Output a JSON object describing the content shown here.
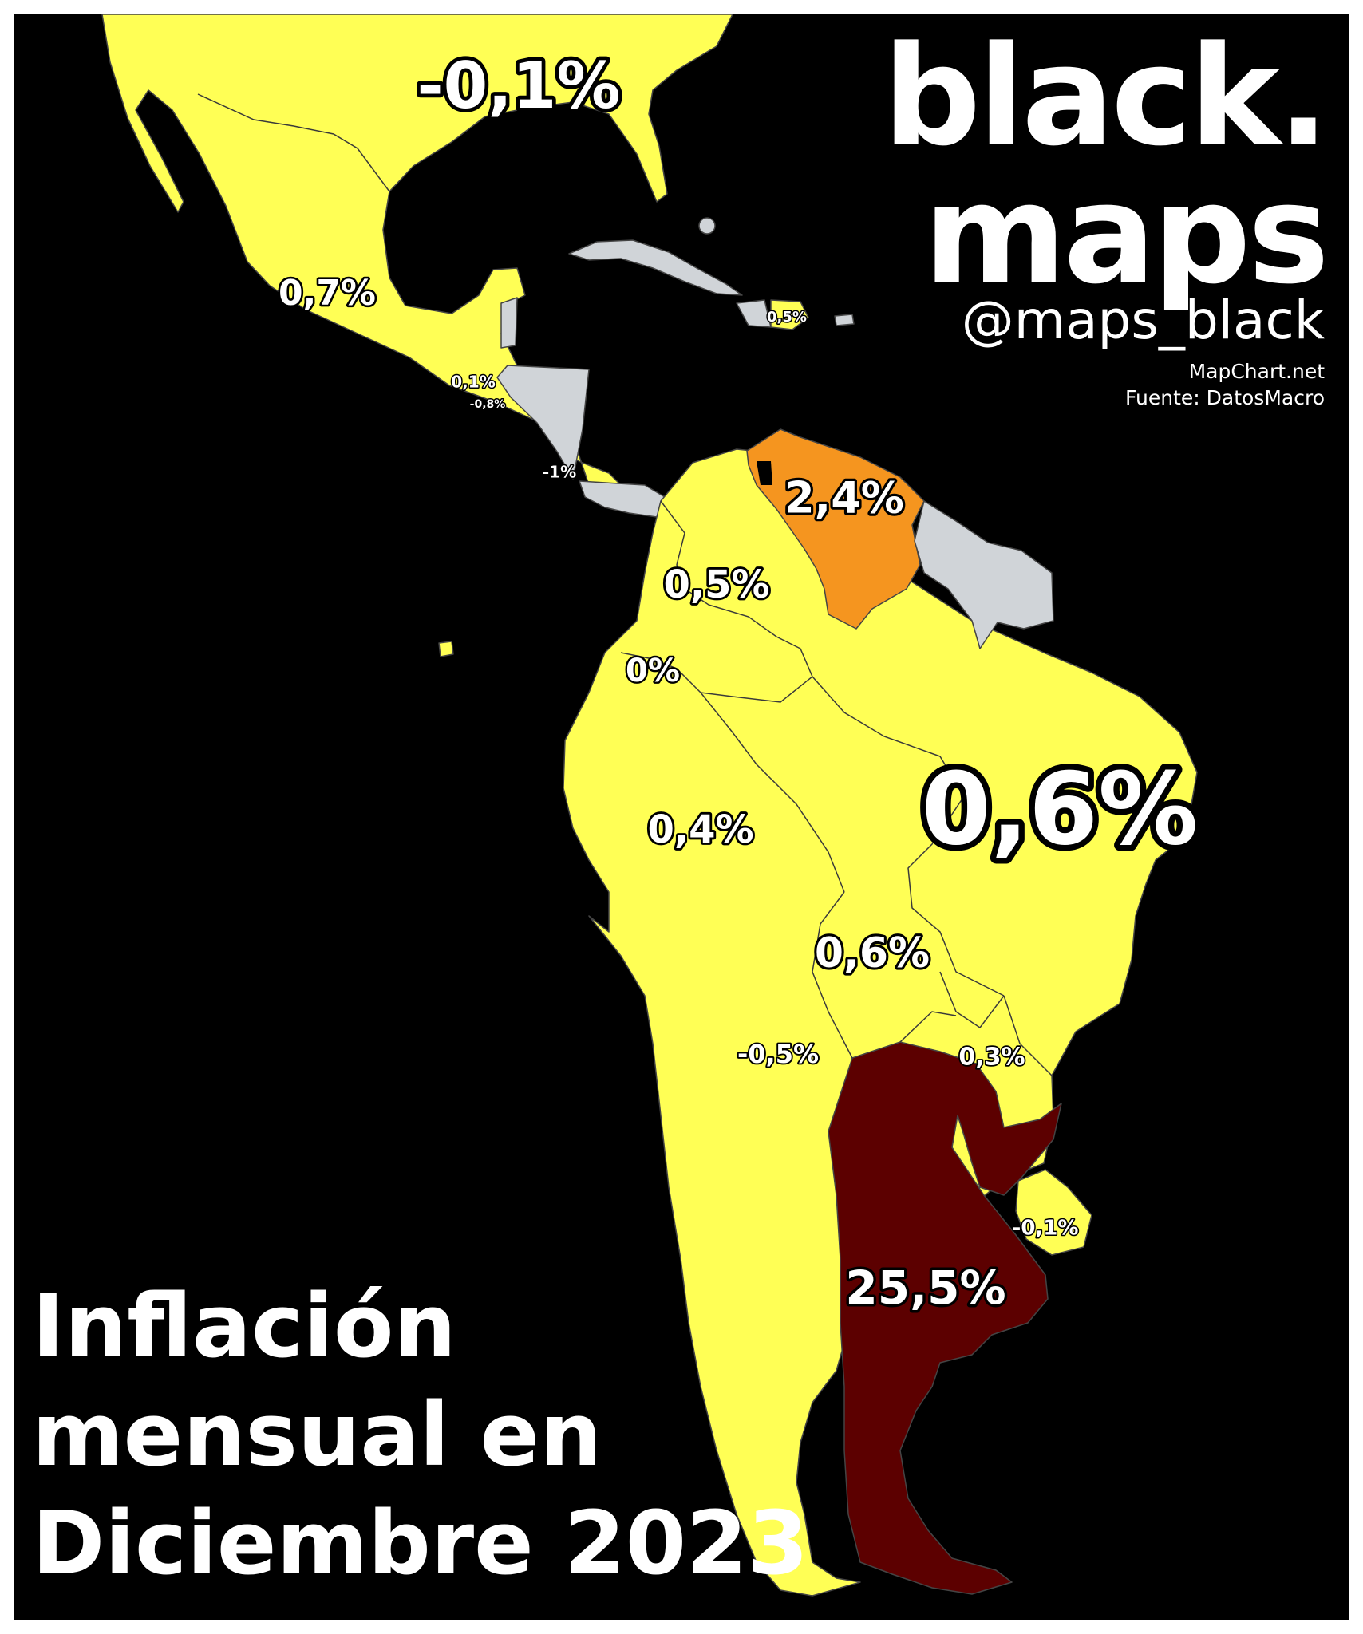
{
  "brand": {
    "line1": "black.",
    "line2": "maps",
    "handle": "@maps_black"
  },
  "credits": {
    "tool": "MapChart.net",
    "source": "Fuente: DatosMacro"
  },
  "title": {
    "line1": "Inflación",
    "line2": "mensual en",
    "line3": "Diciembre 2023"
  },
  "colors": {
    "background": "#000000",
    "low_inflation": "#ffff55",
    "medium_inflation": "#f5951f",
    "high_inflation": "#5c0000",
    "no_data": "#d0d4d8",
    "label_text": "#ffffff",
    "label_outline": "#000000"
  },
  "regions": [
    {
      "country": "Estados Unidos",
      "value": "-0,1%",
      "category": "low"
    },
    {
      "country": "México",
      "value": "0,7%",
      "category": "low"
    },
    {
      "country": "República Dominicana",
      "value": "0,5%",
      "category": "low"
    },
    {
      "country": "Guatemala",
      "value": "0,1%",
      "category": "low"
    },
    {
      "country": "El Salvador",
      "value": "-0,8%",
      "category": "low"
    },
    {
      "country": "Costa Rica",
      "value": "-1%",
      "category": "low"
    },
    {
      "country": "Venezuela",
      "value": "2,4%",
      "category": "medium"
    },
    {
      "country": "Colombia",
      "value": "0,5%",
      "category": "low"
    },
    {
      "country": "Ecuador",
      "value": "0%",
      "category": "low"
    },
    {
      "country": "Brasil",
      "value": "0,6%",
      "category": "low"
    },
    {
      "country": "Perú",
      "value": "0,4%",
      "category": "low"
    },
    {
      "country": "Bolivia",
      "value": "0,6%",
      "category": "low"
    },
    {
      "country": "Chile",
      "value": "-0,5%",
      "category": "low"
    },
    {
      "country": "Paraguay",
      "value": "0,3%",
      "category": "low"
    },
    {
      "country": "Uruguay",
      "value": "-0,1%",
      "category": "low"
    },
    {
      "country": "Argentina",
      "value": "25,5%",
      "category": "high"
    }
  ]
}
